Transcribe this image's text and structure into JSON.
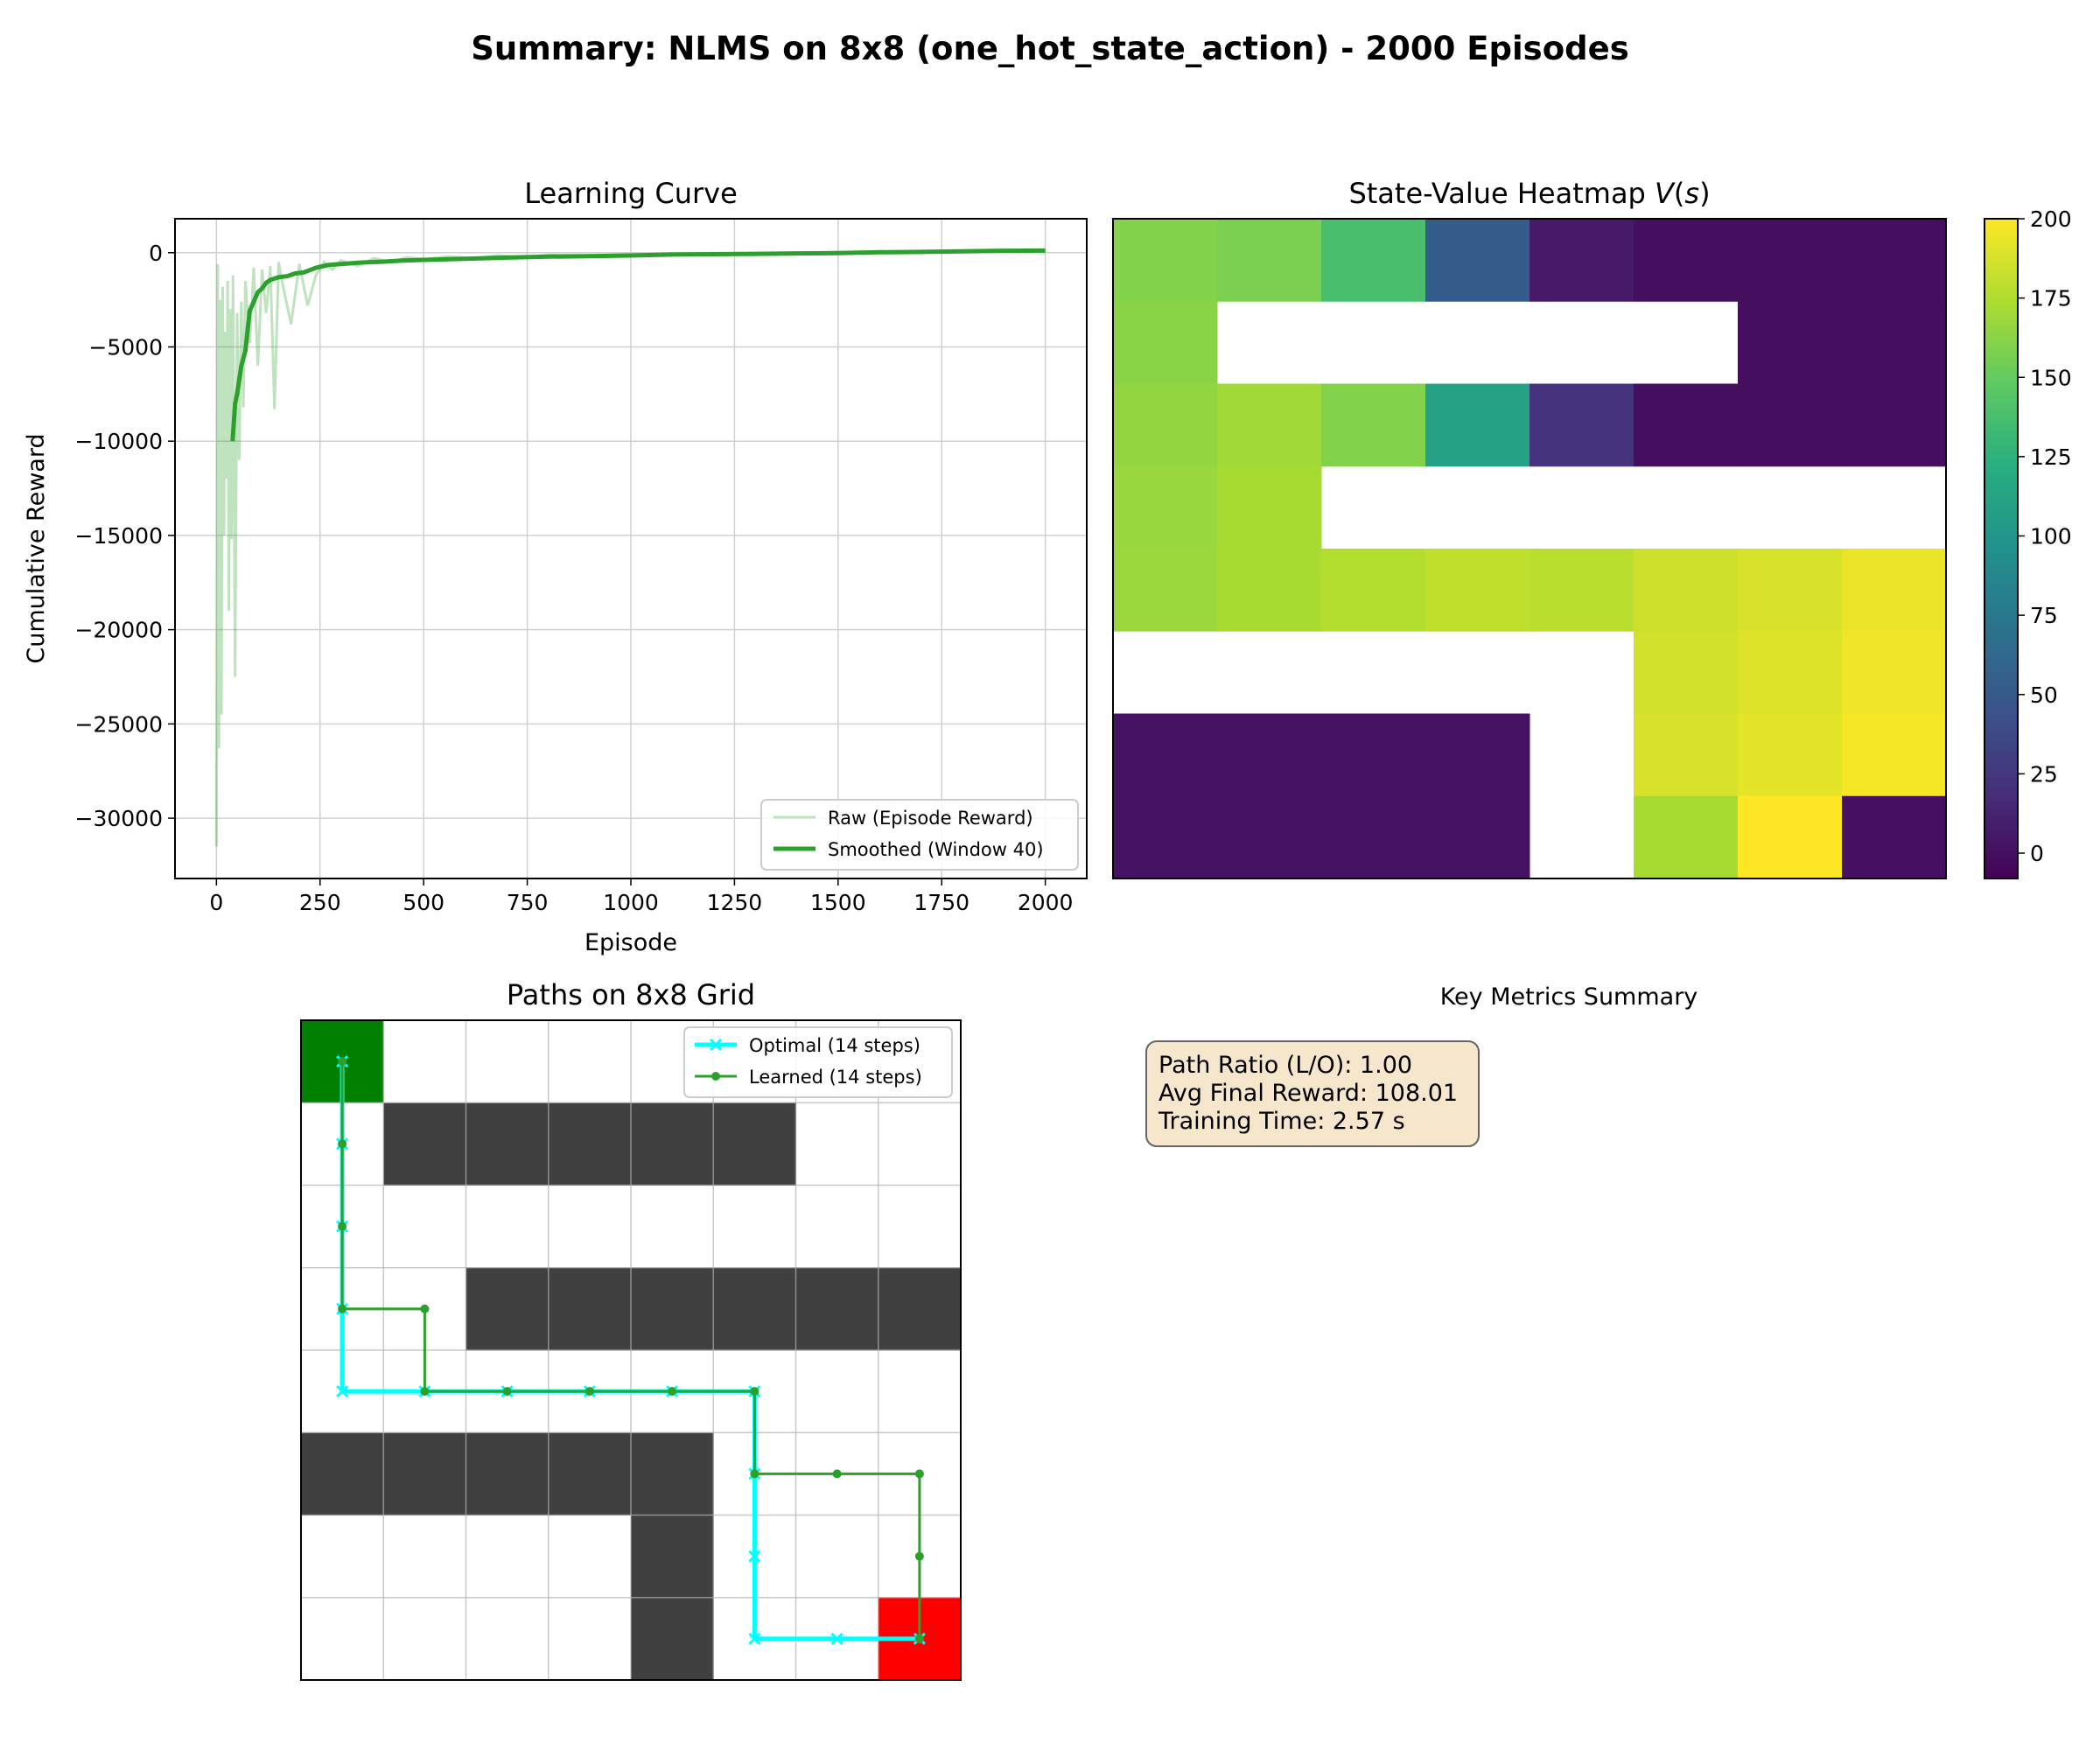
{
  "suptitle": "Summary: NLMS on 8x8 (one_hot_state_action) - 2000 Episodes",
  "chart_data": [
    {
      "type": "line",
      "title": "Learning Curve",
      "xlabel": "Episode",
      "ylabel": "Cumulative Reward",
      "xlim": [
        -100,
        2100
      ],
      "ylim": [
        -33200,
        1800
      ],
      "xticks": [
        0,
        250,
        500,
        750,
        1000,
        1250,
        1500,
        1750,
        2000
      ],
      "yticks": [
        0,
        -5000,
        -10000,
        -15000,
        -20000,
        -25000,
        -30000
      ],
      "xtick_labels": [
        "0",
        "250",
        "500",
        "750",
        "1000",
        "1250",
        "1500",
        "1750",
        "2000"
      ],
      "ytick_labels": [
        "0",
        "−5000",
        "−10000",
        "−15000",
        "−20000",
        "−25000",
        "−30000"
      ],
      "grid": true,
      "legend_position": "lower-right",
      "series": [
        {
          "name": "Raw (Episode Reward)",
          "color": "#2ca02c",
          "alpha": 0.3,
          "x": [
            0,
            3,
            6,
            9,
            12,
            15,
            18,
            21,
            24,
            27,
            30,
            33,
            36,
            40,
            45,
            50,
            55,
            60,
            65,
            70,
            80,
            90,
            100,
            110,
            120,
            130,
            140,
            150,
            160,
            180,
            200,
            220,
            240,
            260,
            280,
            300,
            340,
            380,
            420,
            460,
            500,
            560,
            620,
            680,
            740,
            800,
            900,
            1000,
            1100,
            1200,
            1300,
            1400,
            1500,
            1600,
            1700,
            1800,
            1900,
            2000
          ],
          "y": [
            -31500,
            -600,
            -26300,
            -2500,
            -24500,
            -1800,
            -15000,
            -4200,
            -12000,
            -1500,
            -19000,
            -3000,
            -15200,
            -1200,
            -22500,
            -3200,
            -11000,
            -2600,
            -8200,
            -1500,
            -4800,
            -800,
            -6000,
            -900,
            -3200,
            -700,
            -8300,
            -500,
            -1700,
            -3800,
            -600,
            -2800,
            -1200,
            -500,
            -900,
            -400,
            -700,
            -300,
            -500,
            -250,
            -350,
            -200,
            -300,
            -150,
            -250,
            -120,
            -150,
            -100,
            -90,
            -60,
            -40,
            -20,
            20,
            40,
            60,
            90,
            110,
            120
          ]
        },
        {
          "name": "Smoothed (Window 40)",
          "color": "#2ca02c",
          "x": [
            39,
            45,
            50,
            60,
            70,
            80,
            90,
            100,
            110,
            120,
            130,
            150,
            170,
            190,
            210,
            240,
            270,
            300,
            350,
            400,
            450,
            500,
            600,
            700,
            800,
            900,
            1000,
            1100,
            1200,
            1300,
            1400,
            1500,
            1600,
            1700,
            1800,
            1900,
            2000
          ],
          "y": [
            -10000,
            -8000,
            -7500,
            -6000,
            -5200,
            -3100,
            -2600,
            -2100,
            -1900,
            -1600,
            -1450,
            -1300,
            -1250,
            -1100,
            -1050,
            -800,
            -650,
            -600,
            -520,
            -480,
            -420,
            -380,
            -320,
            -260,
            -210,
            -180,
            -150,
            -100,
            -80,
            -60,
            -40,
            -20,
            20,
            40,
            70,
            100,
            110
          ]
        }
      ]
    },
    {
      "type": "heatmap",
      "title": "State-Value Heatmap V(s)",
      "rows": 8,
      "cols": 8,
      "values": [
        [
          160,
          158,
          138,
          52,
          6,
          0,
          0,
          0
        ],
        [
          162,
          null,
          null,
          null,
          null,
          null,
          0,
          0
        ],
        [
          165,
          170,
          160,
          110,
          22,
          0,
          0,
          0
        ],
        [
          167,
          172,
          null,
          null,
          null,
          null,
          null,
          null
        ],
        [
          168,
          172,
          176,
          180,
          178,
          184,
          188,
          194
        ],
        [
          null,
          null,
          null,
          null,
          null,
          186,
          190,
          196
        ],
        [
          2,
          2,
          2,
          2,
          null,
          188,
          192,
          198
        ],
        [
          2,
          2,
          2,
          2,
          null,
          172,
          200,
          1
        ]
      ],
      "colorbar": {
        "min": -8,
        "max": 200,
        "ticks": [
          0,
          25,
          50,
          75,
          100,
          125,
          150,
          175,
          200
        ],
        "colormap": "viridis"
      }
    },
    {
      "type": "grid-path",
      "title": "Paths on 8x8 Grid",
      "rows": 8,
      "cols": 8,
      "start": [
        0,
        0
      ],
      "goal": [
        7,
        7
      ],
      "start_color": "#008000",
      "goal_color": "#ff0000",
      "wall_color": "#404040",
      "walls": [
        [
          1,
          1
        ],
        [
          1,
          2
        ],
        [
          1,
          3
        ],
        [
          1,
          4
        ],
        [
          1,
          5
        ],
        [
          3,
          2
        ],
        [
          3,
          3
        ],
        [
          3,
          4
        ],
        [
          3,
          5
        ],
        [
          3,
          6
        ],
        [
          3,
          7
        ],
        [
          5,
          0
        ],
        [
          5,
          1
        ],
        [
          5,
          2
        ],
        [
          5,
          3
        ],
        [
          5,
          4
        ],
        [
          6,
          4
        ],
        [
          7,
          4
        ]
      ],
      "legend_position": "upper-right",
      "series": [
        {
          "name": "Optimal (14 steps)",
          "color": "#00ffff",
          "marker": "x",
          "path": [
            [
              0,
              0
            ],
            [
              1,
              0
            ],
            [
              2,
              0
            ],
            [
              3,
              0
            ],
            [
              4,
              0
            ],
            [
              4,
              1
            ],
            [
              4,
              2
            ],
            [
              4,
              3
            ],
            [
              4,
              4
            ],
            [
              4,
              5
            ],
            [
              5,
              5
            ],
            [
              6,
              5
            ],
            [
              7,
              5
            ],
            [
              7,
              6
            ],
            [
              7,
              7
            ]
          ]
        },
        {
          "name": "Learned (14 steps)",
          "color": "#2ca02c",
          "marker": "dot",
          "path": [
            [
              0,
              0
            ],
            [
              1,
              0
            ],
            [
              2,
              0
            ],
            [
              3,
              0
            ],
            [
              3,
              1
            ],
            [
              4,
              1
            ],
            [
              4,
              2
            ],
            [
              4,
              3
            ],
            [
              4,
              4
            ],
            [
              4,
              5
            ],
            [
              5,
              5
            ],
            [
              5,
              6
            ],
            [
              5,
              7
            ],
            [
              6,
              7
            ],
            [
              7,
              7
            ]
          ]
        }
      ]
    }
  ],
  "metrics": {
    "title": "Key Metrics Summary",
    "lines": [
      "Path Ratio (L/O): 1.00",
      "Avg Final Reward: 108.01",
      "Training Time: 2.57 s"
    ],
    "box_fill": "#f5e6cc",
    "box_stroke": "#666666"
  }
}
